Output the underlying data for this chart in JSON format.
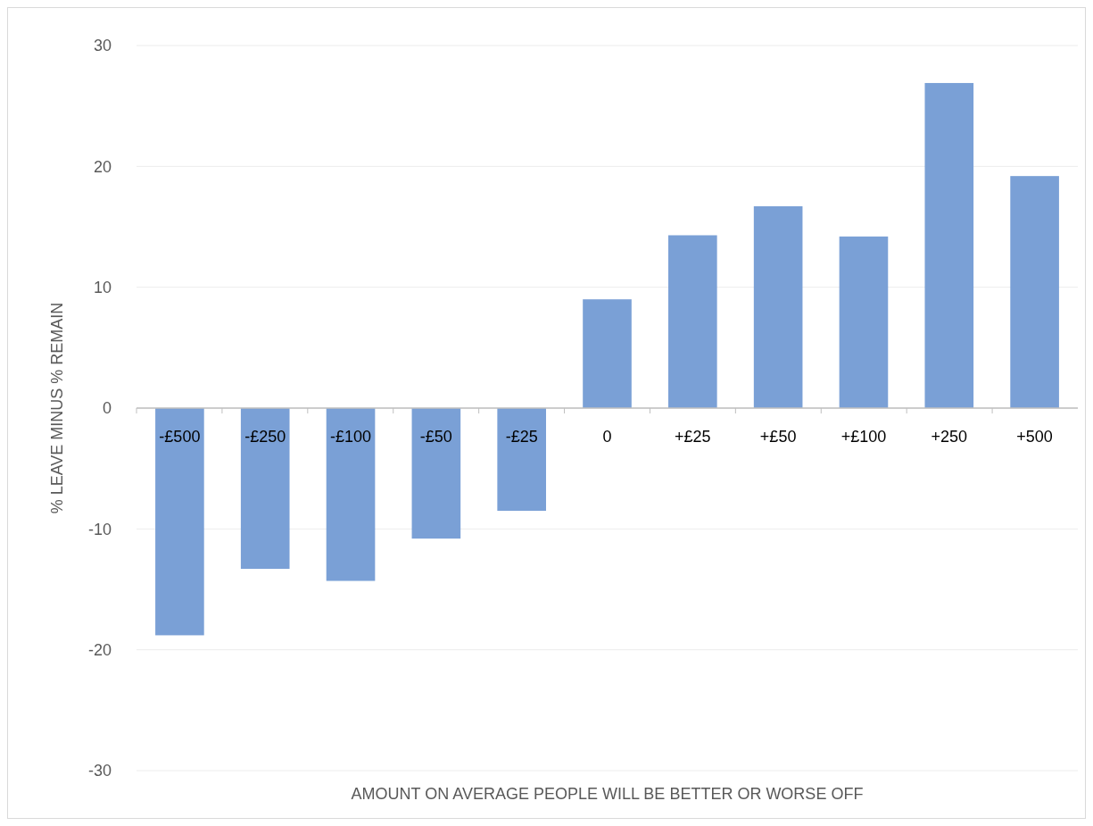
{
  "chart_data": {
    "type": "bar",
    "xlabel": "AMOUNT ON AVERAGE PEOPLE WILL BE BETTER OR WORSE OFF",
    "ylabel": "% LEAVE MINUS % REMAIN",
    "categories": [
      "-£500",
      "-£250",
      "-£100",
      "-£50",
      "-£25",
      "0",
      "+£25",
      "+£50",
      "+£100",
      "+250",
      "+500"
    ],
    "values": [
      -18.8,
      -13.3,
      -14.3,
      -10.8,
      -8.5,
      9.0,
      14.3,
      16.7,
      14.2,
      26.9,
      19.2
    ],
    "color": "#7aa0d6",
    "ylim": [
      -30,
      30
    ],
    "yticks": [
      -30,
      -20,
      -10,
      0,
      10,
      20,
      30
    ],
    "grid": "y"
  }
}
